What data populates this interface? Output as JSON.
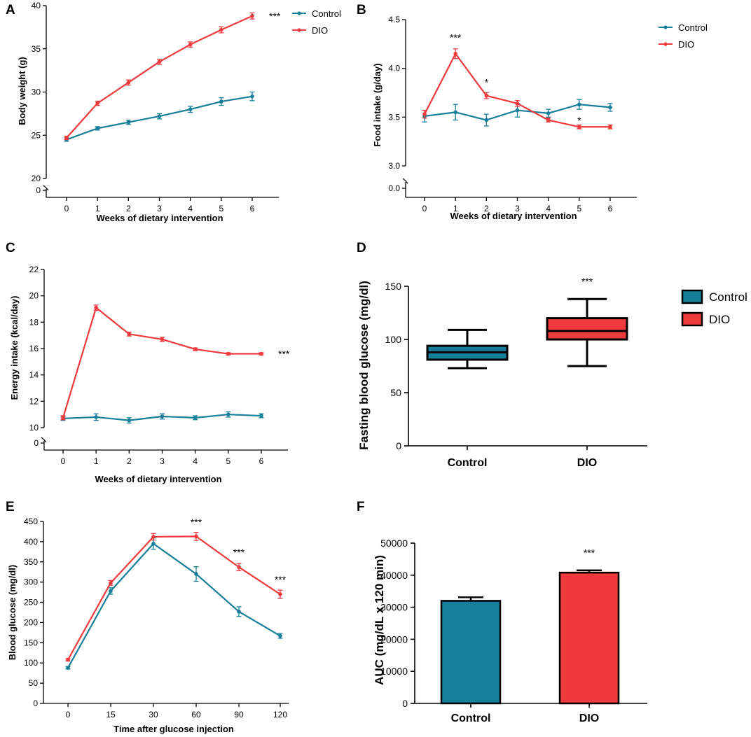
{
  "colors": {
    "control": "#177F9A",
    "dio": "#EE3A3C",
    "axis": "#000000"
  },
  "chart_data": [
    {
      "id": "A",
      "panel_label": "A",
      "type": "line",
      "xlabel": "Weeks of dietary intervention",
      "ylabel": "Body weight (g)",
      "x": [
        0,
        1,
        2,
        3,
        4,
        5,
        6
      ],
      "x_tick_labels": [
        "0",
        "1",
        "2",
        "3",
        "4",
        "5",
        "6"
      ],
      "ylim": [
        20,
        40
      ],
      "y_ticks": [
        "20",
        "25",
        "30",
        "35",
        "40"
      ],
      "y_break_label": "0",
      "series": [
        {
          "name": "Control",
          "values": [
            24.5,
            25.8,
            26.5,
            27.2,
            28.0,
            28.9,
            29.5
          ],
          "errors": [
            0.2,
            0.2,
            0.25,
            0.3,
            0.35,
            0.45,
            0.5
          ]
        },
        {
          "name": "DIO",
          "values": [
            24.7,
            28.7,
            31.1,
            33.5,
            35.5,
            37.2,
            38.8
          ],
          "errors": [
            0.2,
            0.25,
            0.3,
            0.3,
            0.3,
            0.35,
            0.35
          ]
        }
      ],
      "legend": [
        "Control",
        "DIO"
      ],
      "legend_position": "top-right",
      "annotations": [
        {
          "text": "***",
          "x": 6,
          "y": 38.8
        }
      ]
    },
    {
      "id": "B",
      "panel_label": "B",
      "type": "line",
      "xlabel": "Weeks of dietary intervention",
      "ylabel": "Food intake (g/day)",
      "x": [
        0,
        1,
        2,
        3,
        4,
        5,
        6
      ],
      "x_tick_labels": [
        "0",
        "1",
        "2",
        "3",
        "4",
        "5",
        "6"
      ],
      "ylim": [
        3.0,
        4.5
      ],
      "y_ticks": [
        "3.0",
        "3.5",
        "4.0",
        "4.5"
      ],
      "y_break_label": "0.0",
      "series": [
        {
          "name": "Control",
          "values": [
            3.51,
            3.55,
            3.47,
            3.57,
            3.54,
            3.63,
            3.6
          ],
          "errors": [
            0.06,
            0.08,
            0.06,
            0.07,
            0.04,
            0.05,
            0.04
          ]
        },
        {
          "name": "DIO",
          "values": [
            3.53,
            4.15,
            3.72,
            3.64,
            3.47,
            3.4,
            3.4
          ],
          "errors": [
            0.04,
            0.05,
            0.03,
            0.03,
            0.02,
            0.02,
            0.02
          ]
        }
      ],
      "legend": [
        "Control",
        "DIO"
      ],
      "legend_position": "top-right",
      "annotations": [
        {
          "text": "***",
          "x": 1,
          "y": 4.28
        },
        {
          "text": "*",
          "x": 2,
          "y": 3.82
        },
        {
          "text": "*",
          "x": 5,
          "y": 3.43
        }
      ]
    },
    {
      "id": "C",
      "panel_label": "C",
      "type": "line",
      "xlabel": "Weeks of dietary intervention",
      "ylabel": "Energy intake (kcal/day)",
      "x": [
        0,
        1,
        2,
        3,
        4,
        5,
        6
      ],
      "x_tick_labels": [
        "0",
        "1",
        "2",
        "3",
        "4",
        "5",
        "6"
      ],
      "ylim": [
        10,
        22
      ],
      "y_ticks": [
        "10",
        "12",
        "14",
        "16",
        "18",
        "20",
        "22"
      ],
      "y_break_label": "0",
      "series": [
        {
          "name": "Control",
          "values": [
            10.7,
            10.8,
            10.55,
            10.85,
            10.75,
            11.0,
            10.9
          ],
          "errors": [
            0.15,
            0.25,
            0.2,
            0.2,
            0.15,
            0.2,
            0.15
          ]
        },
        {
          "name": "DIO",
          "values": [
            10.75,
            19.1,
            17.1,
            16.7,
            15.95,
            15.6,
            15.6
          ],
          "errors": [
            0.15,
            0.2,
            0.15,
            0.15,
            0.1,
            0.08,
            0.08
          ]
        }
      ],
      "annotations": [
        {
          "text": "***",
          "x": 6,
          "y": 15.6
        }
      ]
    },
    {
      "id": "D",
      "panel_label": "D",
      "type": "box",
      "ylabel": "Fasting blood glucose (mg/dl)",
      "categories": [
        "Control",
        "DIO"
      ],
      "ylim": [
        0,
        150
      ],
      "y_ticks": [
        "0",
        "50",
        "100",
        "150"
      ],
      "boxes": [
        {
          "name": "Control",
          "min": 73,
          "q1": 81,
          "median": 88,
          "q3": 94,
          "max": 109
        },
        {
          "name": "DIO",
          "min": 75,
          "q1": 100,
          "median": 108,
          "q3": 120,
          "max": 138
        }
      ],
      "legend": [
        "Control",
        "DIO"
      ],
      "legend_position": "right",
      "annotations": [
        {
          "text": "***",
          "x": "DIO",
          "y": 150
        }
      ]
    },
    {
      "id": "E",
      "panel_label": "E",
      "type": "line",
      "xlabel": "Time after glucose injection",
      "ylabel": "Blood glucose (mg/dl)",
      "x": [
        0,
        15,
        30,
        60,
        90,
        120
      ],
      "x_tick_labels": [
        "0",
        "15",
        "30",
        "60",
        "90",
        "120"
      ],
      "ylim": [
        0,
        450
      ],
      "y_ticks": [
        "0",
        "50",
        "100",
        "150",
        "200",
        "250",
        "300",
        "350",
        "400",
        "450"
      ],
      "series": [
        {
          "name": "Control",
          "values": [
            88,
            278,
            395,
            320,
            227,
            167
          ],
          "errors": [
            3,
            8,
            14,
            18,
            12,
            6
          ]
        },
        {
          "name": "DIO",
          "values": [
            108,
            298,
            412,
            413,
            337,
            270
          ],
          "errors": [
            3,
            6,
            8,
            10,
            9,
            10
          ]
        }
      ],
      "annotations": [
        {
          "text": "***",
          "x": 60,
          "y": 440
        },
        {
          "text": "***",
          "x": 90,
          "y": 365
        },
        {
          "text": "***",
          "x": 120,
          "y": 298
        }
      ]
    },
    {
      "id": "F",
      "panel_label": "F",
      "type": "bar",
      "ylabel": "AUC (mg/dL x 120 min)",
      "categories": [
        "Control",
        "DIO"
      ],
      "values": [
        32000,
        40800
      ],
      "errors": [
        1100,
        700
      ],
      "ylim": [
        0,
        50000
      ],
      "y_ticks": [
        "0",
        "10000",
        "20000",
        "30000",
        "40000",
        "50000"
      ],
      "annotations": [
        {
          "text": "***",
          "x": "DIO",
          "y": 46000
        }
      ]
    }
  ]
}
